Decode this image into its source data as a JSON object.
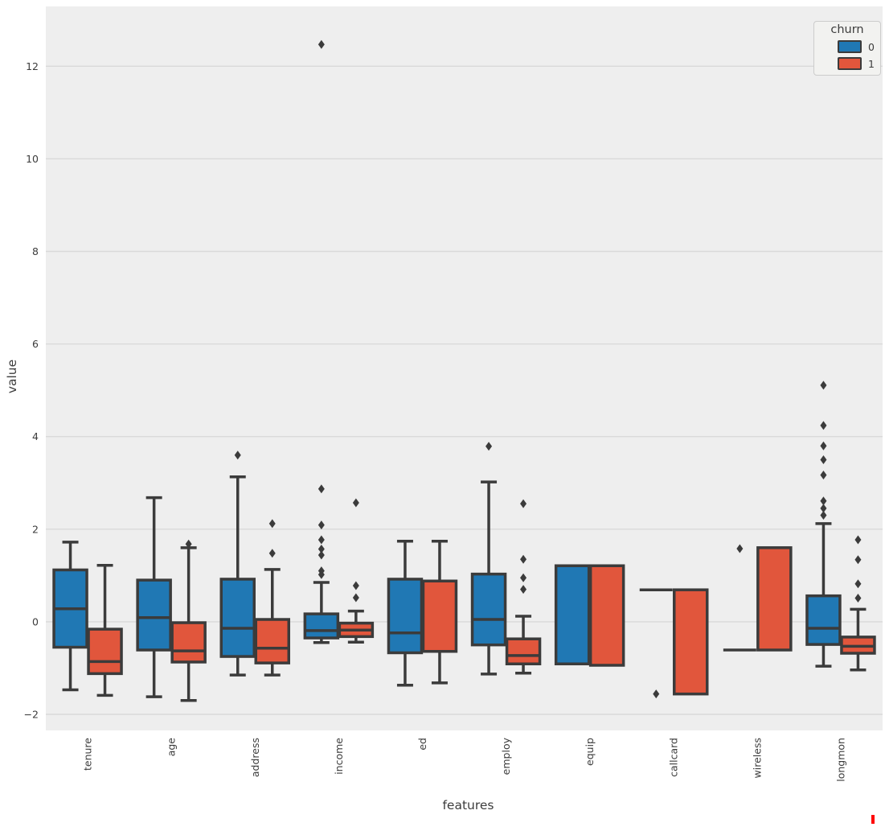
{
  "figure": {
    "background": "#ffffff",
    "plot_background": "#eeeeee",
    "grid_color": "#d9d9d9",
    "edge_color": "#3b3b3b",
    "text_color": "#3c3c3c",
    "cursor_artifact_color": "#ff0000"
  },
  "chart_data": {
    "type": "grouped_boxplot",
    "title": "",
    "xlabel": "features",
    "ylabel": "value",
    "categories": [
      "tenure",
      "age",
      "address",
      "income",
      "ed",
      "employ",
      "equip",
      "callcard",
      "wireless",
      "longmon"
    ],
    "yticks": [
      -2,
      0,
      2,
      4,
      6,
      8,
      10,
      12
    ],
    "ylim": [
      -2.35,
      13.3
    ],
    "grid": true,
    "legend": {
      "title": "churn",
      "position": "upper right",
      "entries": [
        {
          "label": "0",
          "color": "#2078b4"
        },
        {
          "label": "1",
          "color": "#e1563c"
        }
      ]
    },
    "series": [
      {
        "name": "0",
        "color": "#2078b4",
        "boxes": [
          {
            "category": "tenure",
            "whislo": -1.47,
            "q1": -0.55,
            "med": 0.28,
            "q3": 1.12,
            "whishi": 1.72,
            "fliers": []
          },
          {
            "category": "age",
            "whislo": -1.62,
            "q1": -0.61,
            "med": 0.09,
            "q3": 0.9,
            "whishi": 2.68,
            "fliers": []
          },
          {
            "category": "address",
            "whislo": -1.15,
            "q1": -0.75,
            "med": -0.14,
            "q3": 0.92,
            "whishi": 3.13,
            "fliers": [
              3.6
            ]
          },
          {
            "category": "income",
            "whislo": -0.45,
            "q1": -0.35,
            "med": -0.19,
            "q3": 0.17,
            "whishi": 0.85,
            "fliers": [
              12.47,
              2.87,
              2.09,
              1.77,
              1.57,
              1.44,
              1.1,
              1.02
            ]
          },
          {
            "category": "ed",
            "whislo": -1.37,
            "q1": -0.67,
            "med": -0.24,
            "q3": 0.92,
            "whishi": 1.74,
            "fliers": []
          },
          {
            "category": "employ",
            "whislo": -1.13,
            "q1": -0.5,
            "med": 0.05,
            "q3": 1.03,
            "whishi": 3.02,
            "fliers": [
              3.79
            ]
          },
          {
            "category": "equip",
            "whislo": -0.91,
            "q1": -0.91,
            "med": -0.91,
            "q3": 1.21,
            "whishi": 1.21,
            "fliers": []
          },
          {
            "category": "callcard",
            "whislo": 0.69,
            "q1": 0.69,
            "med": 0.69,
            "q3": 0.69,
            "whishi": 0.69,
            "fliers": [
              -1.56
            ]
          },
          {
            "category": "wireless",
            "whislo": -0.61,
            "q1": -0.61,
            "med": -0.61,
            "q3": -0.61,
            "whishi": -0.61,
            "fliers": [
              1.58
            ]
          },
          {
            "category": "longmon",
            "whislo": -0.96,
            "q1": -0.49,
            "med": -0.14,
            "q3": 0.56,
            "whishi": 2.12,
            "fliers": [
              5.11,
              4.24,
              3.8,
              3.5,
              3.17,
              2.61,
              2.45,
              2.3
            ]
          }
        ]
      },
      {
        "name": "1",
        "color": "#e1563c",
        "boxes": [
          {
            "category": "tenure",
            "whislo": -1.59,
            "q1": -1.12,
            "med": -0.86,
            "q3": -0.16,
            "whishi": 1.22,
            "fliers": []
          },
          {
            "category": "age",
            "whislo": -1.7,
            "q1": -0.87,
            "med": -0.63,
            "q3": -0.02,
            "whishi": 1.6,
            "fliers": [
              1.68
            ]
          },
          {
            "category": "address",
            "whislo": -1.15,
            "q1": -0.89,
            "med": -0.57,
            "q3": 0.05,
            "whishi": 1.13,
            "fliers": [
              2.12,
              1.48
            ]
          },
          {
            "category": "income",
            "whislo": -0.44,
            "q1": -0.32,
            "med": -0.18,
            "q3": -0.03,
            "whishi": 0.23,
            "fliers": [
              2.57,
              0.78,
              0.52
            ]
          },
          {
            "category": "ed",
            "whislo": -1.32,
            "q1": -0.64,
            "med": -0.64,
            "q3": 0.88,
            "whishi": 1.74,
            "fliers": []
          },
          {
            "category": "employ",
            "whislo": -1.11,
            "q1": -0.91,
            "med": -0.73,
            "q3": -0.37,
            "whishi": 0.12,
            "fliers": [
              2.55,
              1.35,
              0.95,
              0.7
            ]
          },
          {
            "category": "equip",
            "whislo": -0.94,
            "q1": -0.94,
            "med": -0.94,
            "q3": 1.21,
            "whishi": 1.21,
            "fliers": []
          },
          {
            "category": "callcard",
            "whislo": -1.56,
            "q1": -1.56,
            "med": 0.69,
            "q3": 0.69,
            "whishi": 0.69,
            "fliers": []
          },
          {
            "category": "wireless",
            "whislo": -0.61,
            "q1": -0.61,
            "med": -0.61,
            "q3": 1.6,
            "whishi": 1.6,
            "fliers": []
          },
          {
            "category": "longmon",
            "whislo": -1.04,
            "q1": -0.68,
            "med": -0.53,
            "q3": -0.33,
            "whishi": 0.27,
            "fliers": [
              1.77,
              1.34,
              0.82,
              0.51
            ]
          }
        ]
      }
    ]
  }
}
